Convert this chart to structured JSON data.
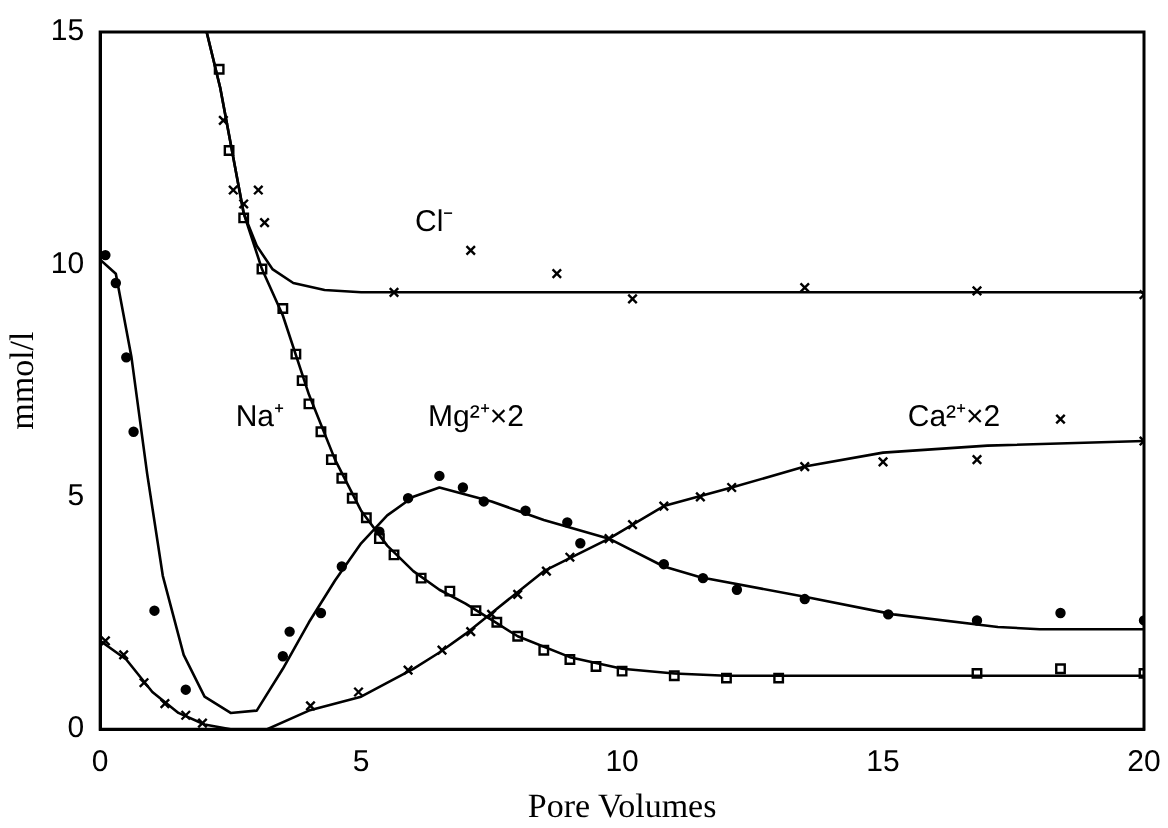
{
  "chart_data": {
    "type": "scatter",
    "xlabel": "Pore Volumes",
    "ylabel": "mmol/l",
    "xlim": [
      0,
      20
    ],
    "xticks": [
      0,
      5,
      10,
      15,
      20
    ],
    "ylim": [
      0,
      15
    ],
    "yticks": [
      0,
      5,
      10,
      15
    ],
    "grid": false,
    "legend": false,
    "series": [
      {
        "type": "line",
        "color": "#000000",
        "marker": "none",
        "line_style": "solid",
        "x": [
          2.04,
          2.3,
          2.5,
          2.75,
          3.0,
          3.3,
          3.7,
          4.3,
          5,
          20
        ],
        "values": [
          15,
          13.8,
          12.6,
          11.1,
          10.4,
          9.9,
          9.6,
          9.45,
          9.4,
          9.4
        ]
      },
      {
        "type": "line",
        "color": "#000000",
        "marker": "none",
        "line_style": "solid",
        "x": [
          2.04,
          2.3,
          2.5,
          2.75,
          3.1,
          3.5,
          4,
          4.5,
          5,
          5.5,
          6,
          6.5,
          7,
          7.5,
          8,
          9,
          10,
          11,
          12,
          20
        ],
        "values": [
          15,
          13.8,
          12.6,
          11.1,
          9.9,
          8.9,
          7.2,
          5.8,
          4.7,
          3.95,
          3.4,
          3.0,
          2.7,
          2.35,
          2.0,
          1.55,
          1.3,
          1.2,
          1.15,
          1.15
        ]
      },
      {
        "type": "line",
        "color": "#000000",
        "marker": "none",
        "line_style": "solid",
        "x": [
          0,
          0.3,
          0.6,
          0.9,
          1.2,
          1.6,
          2.0,
          2.5,
          3.0,
          3.5,
          4,
          4.5,
          5,
          5.5,
          6,
          6.5,
          7.5,
          8.5,
          9.75,
          10.8,
          11.5,
          13.5,
          15.2,
          17.2,
          18,
          20
        ],
        "values": [
          10.1,
          9.8,
          8.0,
          5.5,
          3.3,
          1.6,
          0.7,
          0.35,
          0.4,
          1.3,
          2.3,
          3.2,
          4.0,
          4.6,
          5.0,
          5.2,
          4.9,
          4.5,
          4.1,
          3.5,
          3.27,
          2.85,
          2.47,
          2.2,
          2.15,
          2.15
        ]
      },
      {
        "type": "line",
        "color": "#000000",
        "marker": "none",
        "line_style": "solid",
        "x": [
          0,
          0.5,
          1,
          1.5,
          2,
          2.5,
          3.2,
          4,
          5,
          6,
          6.5,
          7,
          7.5,
          8.5,
          9.75,
          10.8,
          12.1,
          13.5,
          15,
          17,
          20
        ],
        "values": [
          1.9,
          1.5,
          0.8,
          0.35,
          0.1,
          0,
          0,
          0.4,
          0.7,
          1.3,
          1.65,
          2.05,
          2.5,
          3.4,
          4.1,
          4.8,
          5.2,
          5.65,
          5.95,
          6.1,
          6.2
        ]
      },
      {
        "type": "scatter",
        "name": "Cl⁻",
        "color": "#000000",
        "marker": "cross",
        "x": [
          2.36,
          2.55,
          2.75,
          3.03,
          3.15,
          5.63,
          7.1,
          8.75,
          10.2,
          13.5,
          16.8,
          20
        ],
        "values": [
          13.1,
          11.6,
          11.3,
          11.6,
          10.9,
          9.4,
          10.3,
          9.8,
          9.26,
          9.5,
          9.43,
          9.35
        ]
      },
      {
        "type": "scatter",
        "name": "Na⁺",
        "color": "#000000",
        "marker": "square",
        "x": [
          2.28,
          2.47,
          2.75,
          3.1,
          3.5,
          3.75,
          3.87,
          4.0,
          4.23,
          4.43,
          4.63,
          4.83,
          5.1,
          5.35,
          5.63,
          6.15,
          6.7,
          7.2,
          7.6,
          8,
          8.5,
          9,
          9.5,
          10,
          11,
          12,
          13,
          16.8,
          18.4,
          20
        ],
        "values": [
          14.2,
          12.45,
          11.0,
          9.9,
          9.05,
          8.07,
          7.5,
          7.0,
          6.4,
          5.8,
          5.4,
          4.97,
          4.55,
          4.1,
          3.75,
          3.25,
          2.97,
          2.55,
          2.3,
          2.0,
          1.7,
          1.5,
          1.35,
          1.25,
          1.15,
          1.1,
          1.1,
          1.2,
          1.3,
          1.2
        ]
      },
      {
        "type": "scatter",
        "name": "Mg²⁺×2",
        "color": "#000000",
        "marker": "circle",
        "x": [
          0.1,
          0.3,
          0.5,
          0.64,
          1.04,
          1.64,
          3.5,
          3.63,
          4.23,
          4.63,
          5.35,
          5.9,
          6.5,
          6.95,
          7.35,
          8.15,
          8.95,
          9.2,
          10.8,
          11.55,
          12.2,
          13.5,
          15.1,
          16.8,
          18.4,
          20
        ],
        "values": [
          10.2,
          9.6,
          8.0,
          6.4,
          2.55,
          0.85,
          1.57,
          2.1,
          2.5,
          3.5,
          4.25,
          4.97,
          5.45,
          5.2,
          4.9,
          4.7,
          4.45,
          4.0,
          3.55,
          3.25,
          3.0,
          2.8,
          2.47,
          2.34,
          2.5,
          2.34
        ]
      },
      {
        "type": "scatter",
        "name": "Ca²⁺×2",
        "color": "#000000",
        "marker": "cross",
        "x": [
          0.1,
          0.45,
          0.84,
          1.24,
          1.64,
          1.96,
          4.03,
          4.95,
          5.9,
          6.55,
          7.1,
          7.5,
          8,
          8.55,
          9,
          9.75,
          10.2,
          10.8,
          11.5,
          12.1,
          13.5,
          15,
          16.8,
          18.4,
          20
        ],
        "values": [
          1.9,
          1.6,
          1.0,
          0.55,
          0.3,
          0.13,
          0.5,
          0.8,
          1.27,
          1.7,
          2.1,
          2.47,
          2.9,
          3.4,
          3.7,
          4.1,
          4.4,
          4.8,
          5.0,
          5.2,
          5.65,
          5.75,
          5.8,
          6.67,
          6.2
        ]
      }
    ]
  }
}
